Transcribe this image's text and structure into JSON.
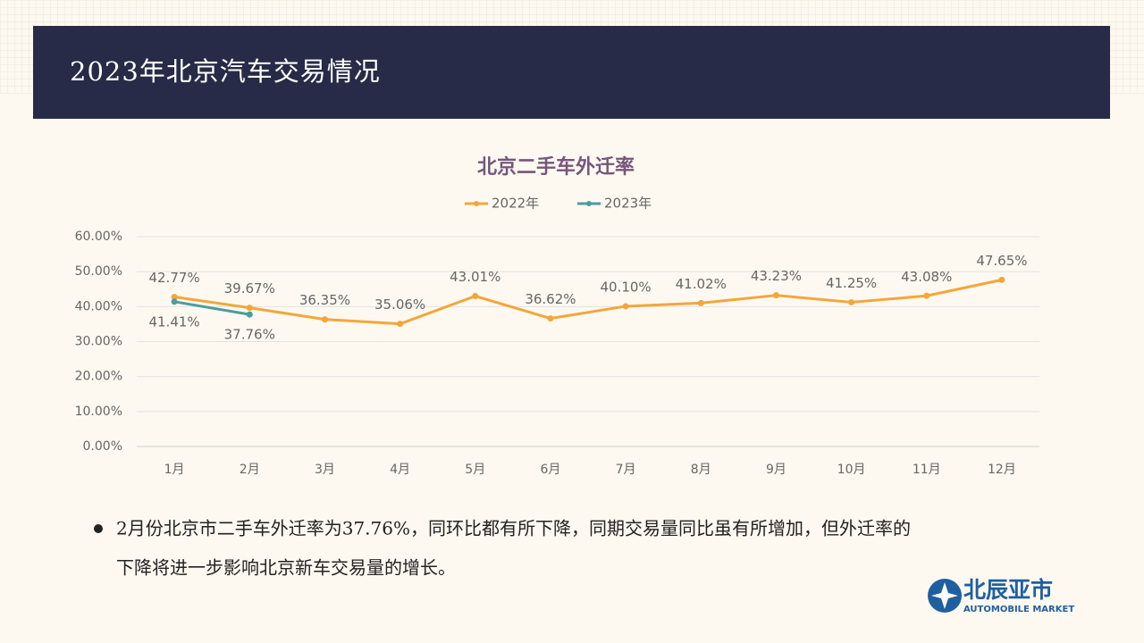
{
  "header": {
    "title": "2023年北京汽车交易情况"
  },
  "chart_data": {
    "type": "line",
    "title": "北京二手车外迁率",
    "categories": [
      "1月",
      "2月",
      "3月",
      "4月",
      "5月",
      "6月",
      "7月",
      "8月",
      "9月",
      "10月",
      "11月",
      "12月"
    ],
    "series": [
      {
        "name": "2022年",
        "color": "#f4a63a",
        "values": [
          42.77,
          39.67,
          36.35,
          35.06,
          43.01,
          36.62,
          40.1,
          41.02,
          43.23,
          41.25,
          43.08,
          47.65
        ],
        "value_labels": [
          "42.77%",
          "39.67%",
          "36.35%",
          "35.06%",
          "43.01%",
          "36.62%",
          "40.10%",
          "41.02%",
          "43.23%",
          "41.25%",
          "43.08%",
          "47.65%"
        ]
      },
      {
        "name": "2023年",
        "color": "#4a9e9e",
        "values": [
          41.41,
          37.76,
          null,
          null,
          null,
          null,
          null,
          null,
          null,
          null,
          null,
          null
        ],
        "value_labels": [
          "41.41%",
          "37.76%",
          null,
          null,
          null,
          null,
          null,
          null,
          null,
          null,
          null,
          null
        ]
      }
    ],
    "ylim": [
      0,
      60
    ],
    "yticks": [
      {
        "value": 0,
        "label": "0.00%"
      },
      {
        "value": 10,
        "label": "10.00%"
      },
      {
        "value": 20,
        "label": "20.00%"
      },
      {
        "value": 30,
        "label": "30.00%"
      },
      {
        "value": 40,
        "label": "40.00%"
      },
      {
        "value": 50,
        "label": "50.00%"
      },
      {
        "value": 60,
        "label": "60.00%"
      }
    ],
    "grid": true,
    "legend": "top"
  },
  "bullet": {
    "lines": [
      "2月份北京市二手车外迁率为37.76%，同环比都有所下降，同期交易量同比虽有所增加，但外迁率的",
      "下降将进一步影响北京新车交易量的增长。"
    ]
  },
  "logo": {
    "name": "北辰亚市",
    "subtitle": "AUTOMOBILE MARKET"
  }
}
